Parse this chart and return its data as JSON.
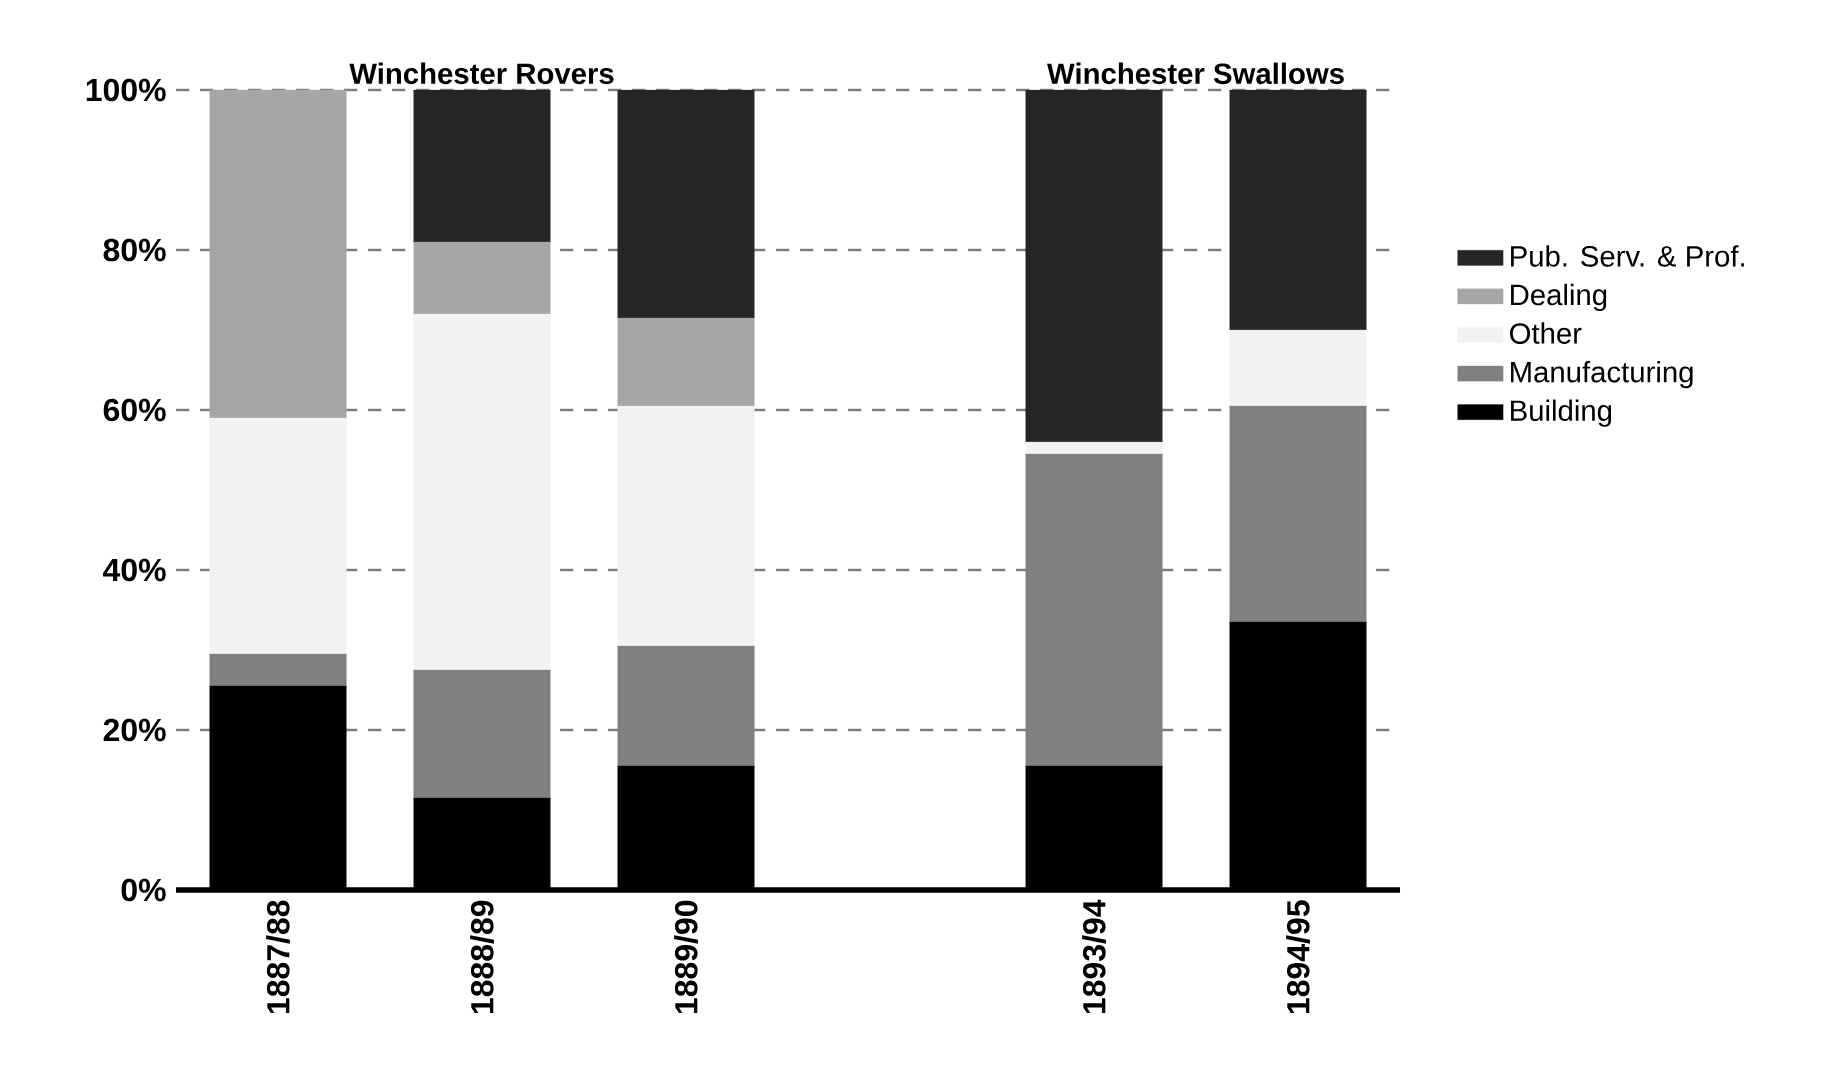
{
  "chart_data": {
    "type": "bar",
    "stacked": true,
    "categories": [
      "1887/88",
      "1888/89",
      "1889/90",
      null,
      "1893/94",
      "1894/95"
    ],
    "series": [
      {
        "name": "Building",
        "color": "#000000",
        "values": [
          25.5,
          11.5,
          15.5,
          null,
          15.5,
          33.5
        ]
      },
      {
        "name": "Manufacturing",
        "color": "#808080",
        "values": [
          4,
          16,
          15,
          null,
          39,
          27
        ]
      },
      {
        "name": "Other",
        "color": "#f2f2f2",
        "values": [
          29.5,
          44.5,
          30,
          null,
          1.5,
          9.5
        ]
      },
      {
        "name": "Dealing",
        "color": "#a6a6a6",
        "values": [
          41,
          9,
          11,
          null,
          0,
          0
        ]
      },
      {
        "name": "Pub. Serv. & Prof.",
        "color": "#262626",
        "values": [
          0,
          19,
          28.5,
          null,
          44,
          30
        ]
      }
    ],
    "ylim": [
      0,
      100
    ],
    "yticks": [
      {
        "value": 0,
        "label": "0%"
      },
      {
        "value": 20,
        "label": "20%"
      },
      {
        "value": 40,
        "label": "40%"
      },
      {
        "value": 60,
        "label": "60%"
      },
      {
        "value": 80,
        "label": "80%"
      },
      {
        "value": 100,
        "label": "100%"
      }
    ],
    "grid": "y",
    "legend": "right",
    "annotations": [
      "Winchester Rovers",
      "Winchester Swallows"
    ]
  }
}
